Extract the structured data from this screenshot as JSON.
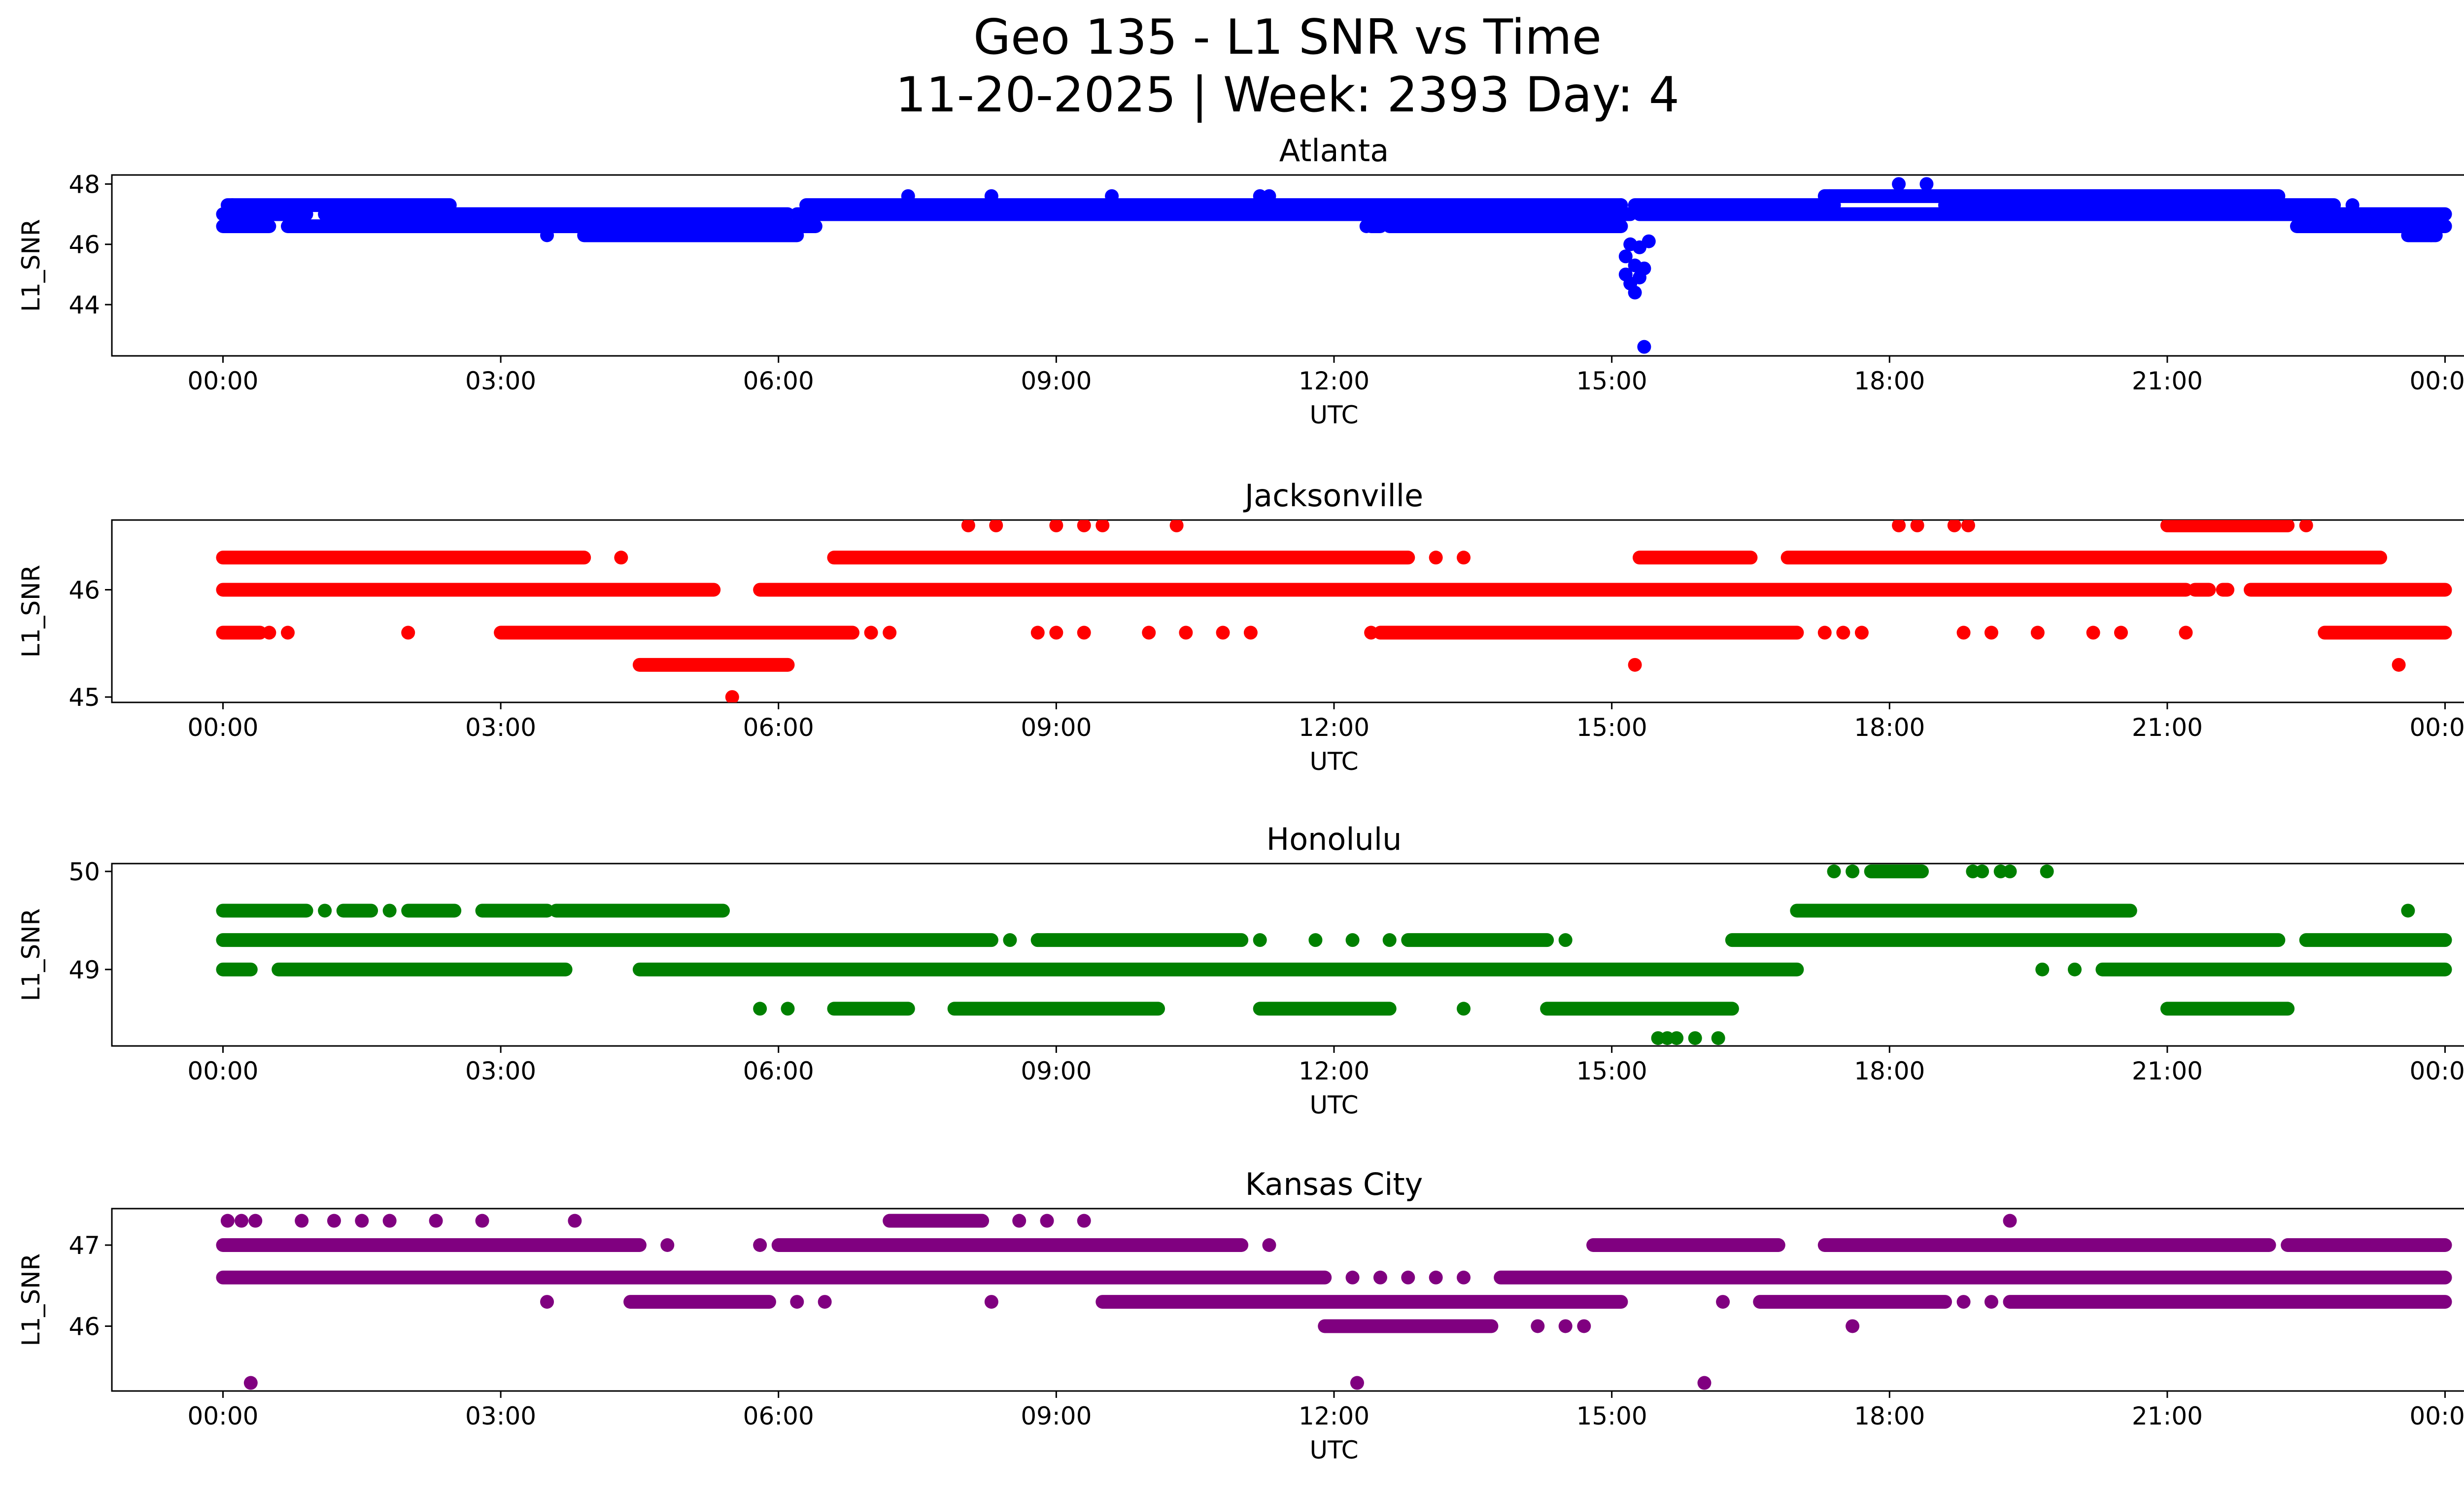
{
  "title_line1": "Geo 135 - L1 SNR vs Time",
  "title_line2": "11-20-2025 | Week: 2393 Day: 4",
  "chart_data": [
    {
      "type": "scatter",
      "title": "Atlanta",
      "xlabel": "UTC",
      "ylabel": "L1_SNR",
      "color": "#0000ff",
      "xlim": [
        -1.2,
        25.2
      ],
      "ylim": [
        42.3,
        48.3
      ],
      "x_ticks": [
        0,
        3,
        6,
        9,
        12,
        15,
        18,
        21,
        24
      ],
      "x_tick_labels": [
        "00:00",
        "03:00",
        "06:00",
        "09:00",
        "12:00",
        "15:00",
        "18:00",
        "21:00",
        "00:00"
      ],
      "y_ticks": [
        44,
        46,
        48
      ],
      "y_tick_labels": [
        "44",
        "46",
        "48"
      ],
      "bands": [
        {
          "y": 47.3,
          "ranges": [
            [
              0.05,
              2.45
            ],
            [
              6.3,
              15.1
            ],
            [
              15.25,
              17.4
            ],
            [
              18.6,
              22.8
            ]
          ]
        },
        {
          "y": 47.0,
          "ranges": [
            [
              0,
              0.9
            ],
            [
              1.1,
              6.1
            ],
            [
              6.2,
              15.2
            ],
            [
              15.3,
              24
            ]
          ]
        },
        {
          "y": 46.6,
          "ranges": [
            [
              0,
              0.5
            ],
            [
              0.7,
              6.4
            ],
            [
              12.4,
              12.5
            ],
            [
              12.6,
              15.1
            ],
            [
              22.4,
              24
            ]
          ]
        },
        {
          "y": 46.3,
          "ranges": [
            [
              3.9,
              6.2
            ],
            [
              23.6,
              23.9
            ]
          ]
        },
        {
          "y": 47.6,
          "ranges": [
            [
              17.3,
              22.2
            ]
          ]
        }
      ],
      "points": [
        [
          0.1,
          47.3
        ],
        [
          3.5,
          46.3
        ],
        [
          7.4,
          47.6
        ],
        [
          8.3,
          47.6
        ],
        [
          9.6,
          47.6
        ],
        [
          11.2,
          47.6
        ],
        [
          11.3,
          47.6
        ],
        [
          12.35,
          46.6
        ],
        [
          15.1,
          47.3
        ],
        [
          15.15,
          45.6
        ],
        [
          15.15,
          45.0
        ],
        [
          15.2,
          44.7
        ],
        [
          15.2,
          46.0
        ],
        [
          15.25,
          45.3
        ],
        [
          15.25,
          44.4
        ],
        [
          15.3,
          45.9
        ],
        [
          15.3,
          44.9
        ],
        [
          15.35,
          42.6
        ],
        [
          15.35,
          45.2
        ],
        [
          15.4,
          46.1
        ],
        [
          17.35,
          47.6
        ],
        [
          18.1,
          48.0
        ],
        [
          18.4,
          48.0
        ],
        [
          18.4,
          47.0
        ],
        [
          19.3,
          47.0
        ],
        [
          20.2,
          47.0
        ],
        [
          21.0,
          47.0
        ],
        [
          22.1,
          47.3
        ],
        [
          23.0,
          47.3
        ],
        [
          23.85,
          46.3
        ],
        [
          24.0,
          46.6
        ]
      ]
    },
    {
      "type": "scatter",
      "title": "Jacksonville",
      "xlabel": "UTC",
      "ylabel": "L1_SNR",
      "color": "#ff0000",
      "xlim": [
        -1.2,
        25.2
      ],
      "ylim": [
        44.95,
        46.65
      ],
      "x_ticks": [
        0,
        3,
        6,
        9,
        12,
        15,
        18,
        21,
        24
      ],
      "x_tick_labels": [
        "00:00",
        "03:00",
        "06:00",
        "09:00",
        "12:00",
        "15:00",
        "18:00",
        "21:00",
        "00:00"
      ],
      "y_ticks": [
        45,
        46
      ],
      "y_tick_labels": [
        "45",
        "46"
      ],
      "bands": [
        {
          "y": 46.3,
          "ranges": [
            [
              0,
              3.9
            ],
            [
              6.6,
              12.8
            ],
            [
              15.3,
              16.5
            ],
            [
              16.9,
              23.3
            ]
          ]
        },
        {
          "y": 46.0,
          "ranges": [
            [
              0,
              5.3
            ],
            [
              5.8,
              21.2
            ],
            [
              21.3,
              21.45
            ],
            [
              21.6,
              21.65
            ],
            [
              21.9,
              24
            ]
          ]
        },
        {
          "y": 45.6,
          "ranges": [
            [
              0,
              0.4
            ],
            [
              3.0,
              6.8
            ],
            [
              12.5,
              17.0
            ],
            [
              22.7,
              24
            ]
          ]
        },
        {
          "y": 45.3,
          "ranges": [
            [
              4.5,
              6.1
            ]
          ]
        },
        {
          "y": 46.6,
          "ranges": [
            [
              21.0,
              22.3
            ]
          ]
        }
      ],
      "points": [
        [
          4.3,
          46.3
        ],
        [
          13.1,
          46.3
        ],
        [
          13.4,
          46.3
        ],
        [
          0.5,
          45.6
        ],
        [
          0.7,
          45.6
        ],
        [
          2.0,
          45.6
        ],
        [
          7.0,
          45.6
        ],
        [
          7.2,
          45.6
        ],
        [
          8.8,
          45.6
        ],
        [
          9.0,
          45.6
        ],
        [
          9.3,
          45.6
        ],
        [
          10.0,
          45.6
        ],
        [
          10.4,
          45.6
        ],
        [
          10.8,
          45.6
        ],
        [
          11.1,
          45.6
        ],
        [
          12.4,
          45.6
        ],
        [
          17.3,
          45.6
        ],
        [
          17.5,
          45.6
        ],
        [
          17.7,
          45.6
        ],
        [
          18.8,
          45.6
        ],
        [
          19.1,
          45.6
        ],
        [
          19.6,
          45.6
        ],
        [
          20.2,
          45.6
        ],
        [
          20.5,
          45.6
        ],
        [
          21.2,
          45.6
        ],
        [
          5.5,
          45.0
        ],
        [
          15.25,
          45.3
        ],
        [
          23.5,
          45.3
        ],
        [
          8.05,
          46.6
        ],
        [
          8.35,
          46.6
        ],
        [
          9.0,
          46.6
        ],
        [
          9.3,
          46.6
        ],
        [
          9.5,
          46.6
        ],
        [
          10.3,
          46.6
        ],
        [
          18.1,
          46.6
        ],
        [
          18.3,
          46.6
        ],
        [
          18.7,
          46.6
        ],
        [
          18.85,
          46.6
        ],
        [
          22.5,
          46.6
        ]
      ]
    },
    {
      "type": "scatter",
      "title": "Honolulu",
      "xlabel": "UTC",
      "ylabel": "L1_SNR",
      "color": "#008000",
      "xlim": [
        -1.2,
        25.2
      ],
      "ylim": [
        48.22,
        50.08
      ],
      "x_ticks": [
        0,
        3,
        6,
        9,
        12,
        15,
        18,
        21,
        24
      ],
      "x_tick_labels": [
        "00:00",
        "03:00",
        "06:00",
        "09:00",
        "12:00",
        "15:00",
        "18:00",
        "21:00",
        "00:00"
      ],
      "y_ticks": [
        49,
        50
      ],
      "y_tick_labels": [
        "49",
        "50"
      ],
      "bands": [
        {
          "y": 49.6,
          "ranges": [
            [
              0,
              0.9
            ],
            [
              1.3,
              1.6
            ],
            [
              2.0,
              2.5
            ],
            [
              2.8,
              3.5
            ],
            [
              3.6,
              5.4
            ],
            [
              17.0,
              20.6
            ]
          ]
        },
        {
          "y": 49.3,
          "ranges": [
            [
              0,
              8.3
            ],
            [
              8.8,
              11.0
            ],
            [
              12.8,
              14.3
            ],
            [
              16.3,
              22.2
            ],
            [
              22.5,
              24
            ]
          ]
        },
        {
          "y": 49.0,
          "ranges": [
            [
              0,
              0.3
            ],
            [
              0.6,
              3.7
            ],
            [
              4.5,
              17.0
            ],
            [
              20.3,
              24
            ]
          ]
        },
        {
          "y": 48.6,
          "ranges": [
            [
              6.6,
              7.4
            ],
            [
              7.9,
              10.1
            ],
            [
              11.2,
              12.6
            ],
            [
              14.3,
              16.3
            ],
            [
              21.0,
              22.3
            ]
          ]
        },
        {
          "y": 50.0,
          "ranges": [
            [
              17.8,
              18.35
            ]
          ]
        }
      ],
      "points": [
        [
          1.1,
          49.6
        ],
        [
          1.8,
          49.6
        ],
        [
          3.0,
          49.6
        ],
        [
          8.5,
          49.3
        ],
        [
          8.8,
          49.3
        ],
        [
          11.2,
          49.3
        ],
        [
          11.8,
          49.3
        ],
        [
          12.2,
          49.3
        ],
        [
          12.6,
          49.3
        ],
        [
          14.5,
          49.3
        ],
        [
          19.65,
          49.0
        ],
        [
          20.0,
          49.0
        ],
        [
          5.8,
          48.6
        ],
        [
          6.1,
          48.6
        ],
        [
          13.4,
          48.6
        ],
        [
          15.5,
          48.3
        ],
        [
          15.6,
          48.3
        ],
        [
          15.7,
          48.3
        ],
        [
          15.9,
          48.3
        ],
        [
          16.15,
          48.3
        ],
        [
          17.4,
          50.0
        ],
        [
          17.6,
          50.0
        ],
        [
          18.9,
          50.0
        ],
        [
          19.0,
          50.0
        ],
        [
          19.2,
          50.0
        ],
        [
          19.3,
          50.0
        ],
        [
          19.7,
          50.0
        ],
        [
          23.6,
          49.6
        ]
      ]
    },
    {
      "type": "scatter",
      "title": "Kansas City",
      "xlabel": "UTC",
      "ylabel": "L1_SNR",
      "color": "#800080",
      "xlim": [
        -1.2,
        25.2
      ],
      "ylim": [
        45.2,
        47.45
      ],
      "x_ticks": [
        0,
        3,
        6,
        9,
        12,
        15,
        18,
        21,
        24
      ],
      "x_tick_labels": [
        "00:00",
        "03:00",
        "06:00",
        "09:00",
        "12:00",
        "15:00",
        "18:00",
        "21:00",
        "00:00"
      ],
      "y_ticks": [
        46,
        47
      ],
      "y_tick_labels": [
        "46",
        "47"
      ],
      "bands": [
        {
          "y": 47.0,
          "ranges": [
            [
              0,
              4.5
            ],
            [
              6.0,
              11.0
            ],
            [
              14.8,
              16.8
            ],
            [
              17.3,
              22.1
            ],
            [
              22.3,
              24
            ]
          ]
        },
        {
          "y": 46.6,
          "ranges": [
            [
              0,
              11.9
            ],
            [
              13.8,
              24
            ]
          ]
        },
        {
          "y": 46.3,
          "ranges": [
            [
              4.4,
              5.9
            ],
            [
              9.5,
              15.1
            ],
            [
              16.6,
              18.6
            ],
            [
              19.3,
              24
            ]
          ]
        },
        {
          "y": 46.0,
          "ranges": [
            [
              11.9,
              13.7
            ]
          ]
        },
        {
          "y": 47.3,
          "ranges": [
            [
              7.2,
              8.2
            ]
          ]
        }
      ],
      "points": [
        [
          0.05,
          47.3
        ],
        [
          0.2,
          47.3
        ],
        [
          0.35,
          47.3
        ],
        [
          0.85,
          47.3
        ],
        [
          1.2,
          47.3
        ],
        [
          1.5,
          47.3
        ],
        [
          1.8,
          47.3
        ],
        [
          2.3,
          47.3
        ],
        [
          2.8,
          47.3
        ],
        [
          3.8,
          47.3
        ],
        [
          8.6,
          47.3
        ],
        [
          8.9,
          47.3
        ],
        [
          9.3,
          47.3
        ],
        [
          4.8,
          47.0
        ],
        [
          5.8,
          47.0
        ],
        [
          11.3,
          47.0
        ],
        [
          12.2,
          46.6
        ],
        [
          12.5,
          46.6
        ],
        [
          12.8,
          46.6
        ],
        [
          13.1,
          46.6
        ],
        [
          13.4,
          46.6
        ],
        [
          3.5,
          46.3
        ],
        [
          6.2,
          46.3
        ],
        [
          6.5,
          46.3
        ],
        [
          8.3,
          46.3
        ],
        [
          16.2,
          46.3
        ],
        [
          18.8,
          46.3
        ],
        [
          19.1,
          46.3
        ],
        [
          14.2,
          46.0
        ],
        [
          14.5,
          46.0
        ],
        [
          14.7,
          46.0
        ],
        [
          17.6,
          46.0
        ],
        [
          0.3,
          45.3
        ],
        [
          12.25,
          45.3
        ],
        [
          16.0,
          45.3
        ],
        [
          19.3,
          47.3
        ]
      ]
    }
  ]
}
